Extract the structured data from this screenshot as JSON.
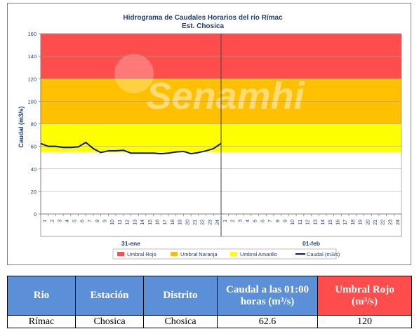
{
  "chart_data": {
    "type": "line",
    "title": "Hidrograma de Caudales Horarios del río Rímac",
    "subtitle": "Est. Chosica",
    "ylabel": "Caudal  (m3/s)",
    "ylim": [
      0,
      160
    ],
    "yticks": [
      0,
      20,
      40,
      60,
      80,
      100,
      120,
      140,
      160
    ],
    "hours": [
      "1",
      "2",
      "3",
      "4",
      "5",
      "6",
      "7",
      "8",
      "9",
      "10",
      "11",
      "12",
      "13",
      "14",
      "15",
      "16",
      "17",
      "18",
      "19",
      "20",
      "21",
      "22",
      "23",
      "24",
      "1",
      "2",
      "3",
      "4",
      "5",
      "6",
      "7",
      "8",
      "9",
      "10",
      "11",
      "12",
      "13",
      "14",
      "15",
      "16",
      "17",
      "18",
      "19",
      "20",
      "21",
      "22",
      "23",
      "24"
    ],
    "days": [
      {
        "label": "31-ene"
      },
      {
        "label": "01-feb"
      }
    ],
    "thresholds": [
      {
        "name": "Umbral Rojo",
        "from": 120,
        "to": 160,
        "color": "#ff4d4d"
      },
      {
        "name": "Umbral Naranja",
        "from": 80,
        "to": 120,
        "color": "#ffc000"
      },
      {
        "name": "Umbral Amarillo",
        "from": 55,
        "to": 80,
        "color": "#ffff00"
      }
    ],
    "series": [
      {
        "name": "Caudal (m3/s)",
        "color": "#0a1a7a",
        "x": [
          0,
          1,
          2,
          3,
          4,
          5,
          6,
          7,
          8,
          9,
          10,
          11,
          12,
          13,
          14,
          15,
          16,
          17,
          18,
          19,
          20,
          21,
          22,
          23,
          24,
          25
        ],
        "values": [
          62.5,
          60,
          60,
          59,
          59,
          59.5,
          63.5,
          58,
          54.5,
          56,
          56,
          56.5,
          54,
          54,
          54,
          54,
          53.5,
          54,
          55,
          55.5,
          53.5,
          54.5,
          56,
          58,
          62.6,
          null
        ]
      }
    ],
    "watermark": "Senamhi",
    "grid": true,
    "legend": "bottom"
  },
  "table": {
    "headers": [
      "Rio",
      "Estación",
      "Distrito",
      "Caudal a las 01:00 horas (m³/s)",
      "Umbral Rojo (m³/s)"
    ],
    "row": [
      "Rímac",
      "Chosica",
      "Chosica",
      "62.6",
      "120"
    ]
  },
  "colors": {
    "header_blue": "#5b8fd8",
    "header_red": "#ff4d4d",
    "series": "#0a1a7a"
  }
}
